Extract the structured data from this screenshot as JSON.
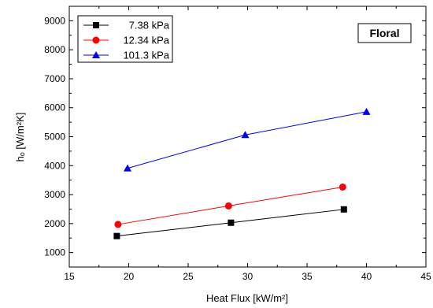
{
  "chart_data": {
    "type": "line",
    "xlabel": "Heat Flux [kW/m²]",
    "ylabel": "hₒ [W/m²K]",
    "xlim": [
      15,
      45
    ],
    "ylim": [
      500,
      9500
    ],
    "xticks": [
      "15",
      "20",
      "25",
      "30",
      "35",
      "40",
      "45"
    ],
    "yticks": [
      "1000",
      "2000",
      "3000",
      "4000",
      "5000",
      "6000",
      "7000",
      "8000",
      "9000"
    ],
    "grid": false,
    "legend_position": "top-left",
    "annotation": "Floral",
    "series": [
      {
        "name": "7.38 kPa",
        "color": "#000000",
        "marker": "square",
        "x": [
          19.0,
          28.6,
          38.1
        ],
        "y": [
          1570,
          2030,
          2490
        ]
      },
      {
        "name": "12.34 kPa",
        "color": "#ff0000",
        "marker": "circle",
        "x": [
          19.1,
          28.4,
          38.0
        ],
        "y": [
          1970,
          2610,
          3260
        ]
      },
      {
        "name": "101.3 kPa",
        "color": "#0000ff",
        "marker": "triangle",
        "x": [
          19.9,
          29.8,
          40.0
        ],
        "y": [
          3910,
          5060,
          5860
        ]
      }
    ]
  }
}
